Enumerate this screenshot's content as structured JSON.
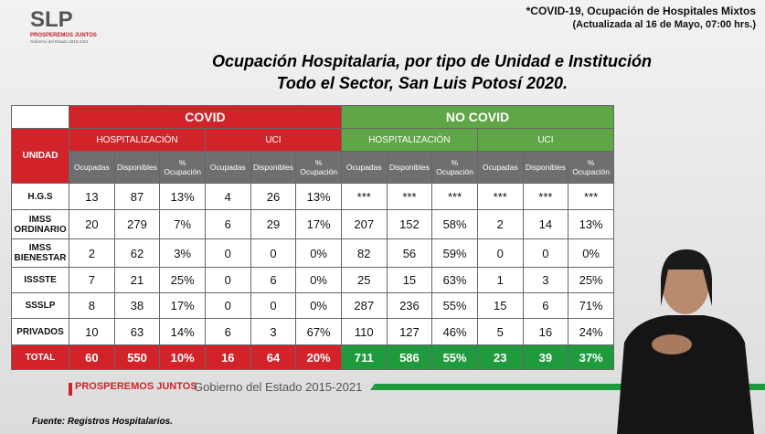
{
  "header": {
    "logo": "SLP",
    "logo_tagline": "PROSPEREMOS JUNTOS",
    "logo_sub": "Gobierno del Estado 2015-2021",
    "note": "*COVID-19, Ocupación de Hospitales Mixtos",
    "note_date": "(Actualizada al 16 de Mayo, 07:00 hrs.)"
  },
  "title": [
    "Ocupación Hospitalaria, por tipo de Unidad e Institución",
    "Todo el Sector, San Luis Potosí 2020."
  ],
  "table": {
    "unit_header": "UNIDAD",
    "groups": [
      {
        "name": "COVID",
        "subgroups": [
          "HOSPITALIZACIÓN",
          "UCI"
        ]
      },
      {
        "name": "NO COVID",
        "subgroups": [
          "HOSPITALIZACIÓN",
          "UCI"
        ]
      }
    ],
    "columns": [
      "Ocupadas",
      "Disponibles",
      "% Ocupación"
    ],
    "rows": [
      [
        "H.G.S",
        "13",
        "87",
        "13%",
        "4",
        "26",
        "13%",
        "***",
        "***",
        "***",
        "***",
        "***",
        "***"
      ],
      [
        "IMSS ORDINARIO",
        "20",
        "279",
        "7%",
        "6",
        "29",
        "17%",
        "207",
        "152",
        "58%",
        "2",
        "14",
        "13%"
      ],
      [
        "IMSS BIENESTAR",
        "2",
        "62",
        "3%",
        "0",
        "0",
        "0%",
        "82",
        "56",
        "59%",
        "0",
        "0",
        "0%"
      ],
      [
        "ISSSTE",
        "7",
        "21",
        "25%",
        "0",
        "6",
        "0%",
        "25",
        "15",
        "63%",
        "1",
        "3",
        "25%"
      ],
      [
        "SSSLP",
        "8",
        "38",
        "17%",
        "0",
        "0",
        "0%",
        "287",
        "236",
        "55%",
        "15",
        "6",
        "71%"
      ],
      [
        "PRIVADOS",
        "10",
        "63",
        "14%",
        "6",
        "3",
        "67%",
        "110",
        "127",
        "46%",
        "5",
        "16",
        "24%"
      ]
    ],
    "total": [
      "TOTAL",
      "60",
      "550",
      "10%",
      "16",
      "64",
      "20%",
      "711",
      "586",
      "55%",
      "23",
      "39",
      "37%"
    ]
  },
  "footer": {
    "brand": "PROSPEREMOS JUNTOS",
    "government": "Gobierno del Estado 2015-2021",
    "source": "Fuente: Registros Hospitalarios."
  }
}
